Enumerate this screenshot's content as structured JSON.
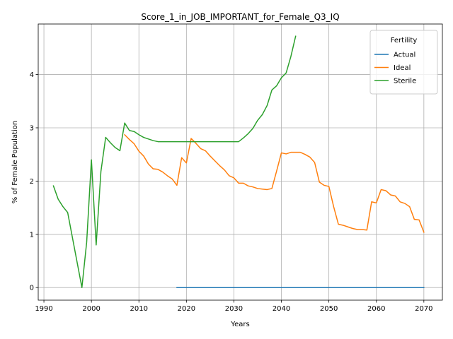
{
  "chart_data": {
    "type": "line",
    "title": "Score_1_in_JOB_IMPORTANT_for_Female_Q3_IQ",
    "xlabel": "Years",
    "ylabel": "% of Female Population",
    "xlim": [
      1988.8,
      2073.9
    ],
    "ylim": [
      -0.236,
      4.949
    ],
    "xticks": [
      1990,
      2000,
      2010,
      2020,
      2030,
      2040,
      2050,
      2060,
      2070
    ],
    "yticks": [
      0,
      1,
      2,
      3,
      4
    ],
    "grid": true,
    "legend": {
      "title": "Fertility",
      "placement": "top-right"
    },
    "series": [
      {
        "name": "Actual",
        "color": "#1f77b4",
        "points": [
          [
            2018,
            0.0
          ],
          [
            2070,
            0.0
          ]
        ]
      },
      {
        "name": "Ideal",
        "color": "#ff7f0e",
        "points": [
          [
            2007,
            2.87
          ],
          [
            2008,
            2.78
          ],
          [
            2009,
            2.7
          ],
          [
            2010,
            2.56
          ],
          [
            2011,
            2.47
          ],
          [
            2012,
            2.32
          ],
          [
            2013,
            2.23
          ],
          [
            2014,
            2.22
          ],
          [
            2015,
            2.17
          ],
          [
            2016,
            2.1
          ],
          [
            2017,
            2.04
          ],
          [
            2018,
            1.92
          ],
          [
            2019,
            2.44
          ],
          [
            2020,
            2.34
          ],
          [
            2021,
            2.8
          ],
          [
            2022,
            2.71
          ],
          [
            2023,
            2.61
          ],
          [
            2024,
            2.57
          ],
          [
            2025,
            2.47
          ],
          [
            2026,
            2.38
          ],
          [
            2027,
            2.29
          ],
          [
            2028,
            2.21
          ],
          [
            2029,
            2.1
          ],
          [
            2030,
            2.06
          ],
          [
            2031,
            1.96
          ],
          [
            2032,
            1.96
          ],
          [
            2033,
            1.91
          ],
          [
            2034,
            1.89
          ],
          [
            2035,
            1.86
          ],
          [
            2036,
            1.85
          ],
          [
            2037,
            1.84
          ],
          [
            2038,
            1.86
          ],
          [
            2039,
            2.19
          ],
          [
            2040,
            2.53
          ],
          [
            2041,
            2.51
          ],
          [
            2042,
            2.54
          ],
          [
            2043,
            2.54
          ],
          [
            2044,
            2.54
          ],
          [
            2045,
            2.5
          ],
          [
            2046,
            2.45
          ],
          [
            2047,
            2.35
          ],
          [
            2048,
            1.98
          ],
          [
            2049,
            1.92
          ],
          [
            2050,
            1.9
          ],
          [
            2051,
            1.52
          ],
          [
            2052,
            1.19
          ],
          [
            2053,
            1.17
          ],
          [
            2054,
            1.14
          ],
          [
            2055,
            1.11
          ],
          [
            2056,
            1.09
          ],
          [
            2057,
            1.09
          ],
          [
            2058,
            1.08
          ],
          [
            2059,
            1.61
          ],
          [
            2060,
            1.59
          ],
          [
            2061,
            1.84
          ],
          [
            2062,
            1.82
          ],
          [
            2063,
            1.74
          ],
          [
            2064,
            1.72
          ],
          [
            2065,
            1.61
          ],
          [
            2066,
            1.58
          ],
          [
            2067,
            1.52
          ],
          [
            2068,
            1.28
          ],
          [
            2069,
            1.27
          ],
          [
            2070,
            1.04
          ]
        ]
      },
      {
        "name": "Sterile",
        "color": "#2ca02c",
        "points": [
          [
            1992,
            1.91
          ],
          [
            1993,
            1.66
          ],
          [
            1994,
            1.52
          ],
          [
            1995,
            1.41
          ],
          [
            1998,
            0.0
          ],
          [
            1999,
            0.85
          ],
          [
            2000,
            2.4
          ],
          [
            2001,
            0.8
          ],
          [
            2002,
            2.18
          ],
          [
            2003,
            2.82
          ],
          [
            2004,
            2.72
          ],
          [
            2005,
            2.63
          ],
          [
            2006,
            2.57
          ],
          [
            2007,
            3.09
          ],
          [
            2008,
            2.95
          ],
          [
            2009,
            2.93
          ],
          [
            2010,
            2.87
          ],
          [
            2011,
            2.82
          ],
          [
            2012,
            2.79
          ],
          [
            2013,
            2.76
          ],
          [
            2014,
            2.74
          ],
          [
            2015,
            2.74
          ],
          [
            2016,
            2.74
          ],
          [
            2017,
            2.74
          ],
          [
            2018,
            2.74
          ],
          [
            2019,
            2.74
          ],
          [
            2020,
            2.74
          ],
          [
            2021,
            2.74
          ],
          [
            2022,
            2.74
          ],
          [
            2023,
            2.74
          ],
          [
            2024,
            2.74
          ],
          [
            2025,
            2.74
          ],
          [
            2026,
            2.74
          ],
          [
            2027,
            2.74
          ],
          [
            2028,
            2.74
          ],
          [
            2029,
            2.74
          ],
          [
            2030,
            2.74
          ],
          [
            2031,
            2.74
          ],
          [
            2032,
            2.81
          ],
          [
            2033,
            2.89
          ],
          [
            2034,
            2.99
          ],
          [
            2035,
            3.14
          ],
          [
            2036,
            3.25
          ],
          [
            2037,
            3.42
          ],
          [
            2038,
            3.71
          ],
          [
            2039,
            3.79
          ],
          [
            2040,
            3.94
          ],
          [
            2041,
            4.03
          ],
          [
            2042,
            4.34
          ],
          [
            2043,
            4.72
          ]
        ]
      }
    ]
  }
}
